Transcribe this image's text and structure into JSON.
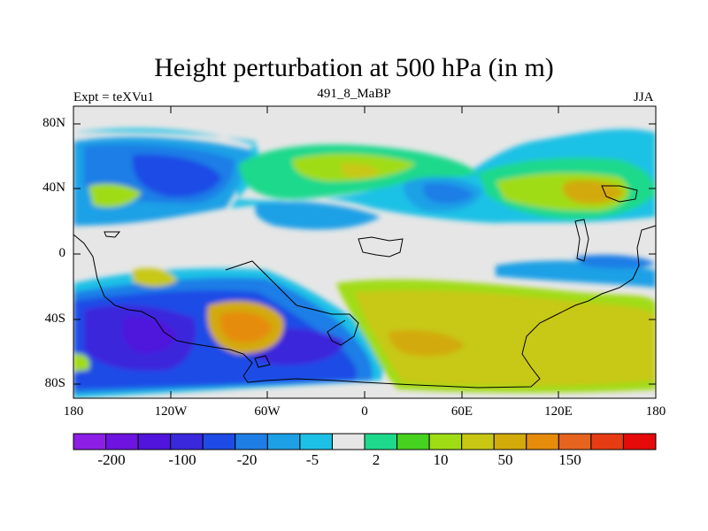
{
  "map": {
    "title": "Height perturbation at 500 hPa (in m)",
    "left_label": "Expt = teXVu1",
    "center_label": "491_8_MaBP",
    "right_label": "JJA",
    "y_ticks": [
      "80N",
      "40N",
      "0",
      "40S",
      "80S"
    ],
    "x_ticks": [
      "180",
      "120W",
      "60W",
      "0",
      "60E",
      "120E",
      "180"
    ],
    "lon_range": [
      -180,
      180
    ],
    "lat_range": [
      -90,
      90
    ],
    "background_color": "#e6e6e6"
  },
  "colorbar": {
    "colors": [
      "#8c1ee6",
      "#6e14e0",
      "#5014dc",
      "#3a28dc",
      "#1e4be6",
      "#1e7ee6",
      "#1ea0e6",
      "#1ec1e6",
      "#e6e6e6",
      "#1ed98c",
      "#46d21e",
      "#a0dc14",
      "#c8c814",
      "#d2aa0a",
      "#e68c0a",
      "#e6641e",
      "#e63c14",
      "#e60a0a"
    ],
    "labels": [
      "-200",
      "-100",
      "-20",
      "-5",
      "2",
      "10",
      "50",
      "150"
    ]
  }
}
